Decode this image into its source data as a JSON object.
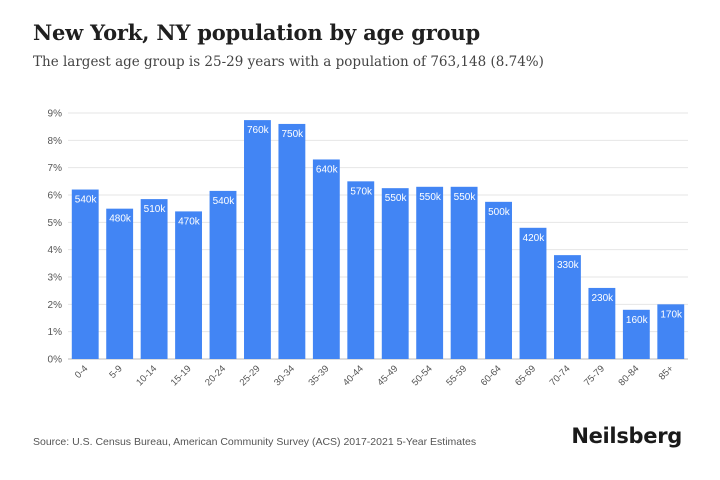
{
  "header": {
    "title": "New York, NY population by age group",
    "subtitle": "The largest age group is 25-29 years with a population of 763,148 (8.74%)"
  },
  "footer": {
    "source": "Source: U.S. Census Bureau, American Community Survey (ACS) 2017-2021 5-Year Estimates",
    "brand": "Neilsberg"
  },
  "chart_data": {
    "type": "bar",
    "title": "New York, NY population by age group",
    "subtitle": "The largest age group is 25-29 years with a population of 763,148 (8.74%)",
    "xlabel": "",
    "ylabel": "",
    "ylim": [
      0,
      9
    ],
    "yticks": [
      "0%",
      "1%",
      "2%",
      "3%",
      "4%",
      "5%",
      "6%",
      "7%",
      "8%",
      "9%"
    ],
    "grid": true,
    "bar_color": "#4285f4",
    "categories": [
      "0-4",
      "5-9",
      "10-14",
      "15-19",
      "20-24",
      "25-29",
      "30-34",
      "35-39",
      "40-44",
      "45-49",
      "50-54",
      "55-59",
      "60-64",
      "65-69",
      "70-74",
      "75-79",
      "80-84",
      "85+"
    ],
    "values": [
      6.2,
      5.5,
      5.85,
      5.4,
      6.15,
      8.74,
      8.6,
      7.3,
      6.5,
      6.25,
      6.3,
      6.3,
      5.75,
      4.8,
      3.8,
      2.6,
      1.8,
      2.0
    ],
    "labels": [
      "540k",
      "480k",
      "510k",
      "470k",
      "540k",
      "760k",
      "750k",
      "640k",
      "570k",
      "550k",
      "550k",
      "550k",
      "500k",
      "420k",
      "330k",
      "230k",
      "160k",
      "170k"
    ]
  }
}
